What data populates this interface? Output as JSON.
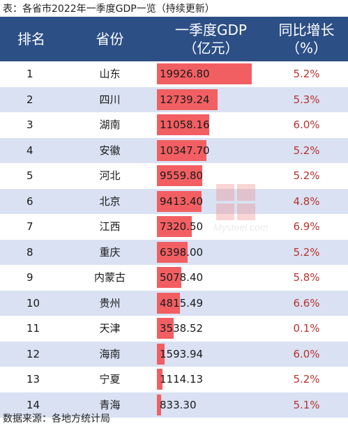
{
  "title": "表：各省市2022年一季度GDP一览（持续更新）",
  "header": {
    "rank": "排名",
    "province": "省份",
    "gdp_line1": "一季度GDP",
    "gdp_line2": "（亿元）",
    "growth_line1": "同比增长",
    "growth_line2": "（%）"
  },
  "colors": {
    "header_bg": "#2c4f86",
    "stripe": "#d9e1f2",
    "bar": "#f25f63",
    "growth_text": "#b7332f"
  },
  "rows": [
    {
      "rank": "1",
      "province": "山东",
      "gdp": "19926.80",
      "gdp_value": 19926.8,
      "growth": "5.2%"
    },
    {
      "rank": "2",
      "province": "四川",
      "gdp": "12739.24",
      "gdp_value": 12739.24,
      "growth": "5.3%"
    },
    {
      "rank": "3",
      "province": "湖南",
      "gdp": "11058.16",
      "gdp_value": 11058.16,
      "growth": "6.0%"
    },
    {
      "rank": "4",
      "province": "安徽",
      "gdp": "10347.70",
      "gdp_value": 10347.7,
      "growth": "5.2%"
    },
    {
      "rank": "5",
      "province": "河北",
      "gdp": "9559.80",
      "gdp_value": 9559.8,
      "growth": "5.2%"
    },
    {
      "rank": "6",
      "province": "北京",
      "gdp": "9413.40",
      "gdp_value": 9413.4,
      "growth": "4.8%"
    },
    {
      "rank": "7",
      "province": "江西",
      "gdp": "7320.50",
      "gdp_value": 7320.5,
      "growth": "6.9%"
    },
    {
      "rank": "8",
      "province": "重庆",
      "gdp": "6398.00",
      "gdp_value": 6398.0,
      "growth": "5.2%"
    },
    {
      "rank": "9",
      "province": "内蒙古",
      "gdp": "5078.40",
      "gdp_value": 5078.4,
      "growth": "5.8%"
    },
    {
      "rank": "10",
      "province": "贵州",
      "gdp": "4815.49",
      "gdp_value": 4815.49,
      "growth": "6.6%"
    },
    {
      "rank": "11",
      "province": "天津",
      "gdp": "3538.52",
      "gdp_value": 3538.52,
      "growth": "0.1%"
    },
    {
      "rank": "12",
      "province": "海南",
      "gdp": "1593.94",
      "gdp_value": 1593.94,
      "growth": "6.0%"
    },
    {
      "rank": "13",
      "province": "宁夏",
      "gdp": "1114.13",
      "gdp_value": 1114.13,
      "growth": "5.2%"
    },
    {
      "rank": "14",
      "province": "青海",
      "gdp": "833.30",
      "gdp_value": 833.3,
      "growth": "5.1%"
    }
  ],
  "watermark": {
    "text": "Mysteel.com"
  },
  "source": "数据来源：各地方统计局"
}
